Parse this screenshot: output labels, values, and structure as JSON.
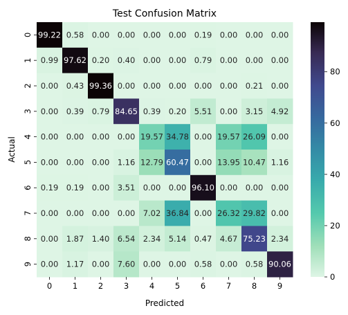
{
  "chart_data": {
    "type": "heatmap",
    "title": "Test Confusion Matrix",
    "xlabel": "Predicted",
    "ylabel": "Actual",
    "x_categories": [
      "0",
      "1",
      "2",
      "3",
      "4",
      "5",
      "6",
      "7",
      "8",
      "9"
    ],
    "y_categories": [
      "0",
      "1",
      "2",
      "3",
      "4",
      "5",
      "6",
      "7",
      "8",
      "9"
    ],
    "values": [
      [
        99.22,
        0.58,
        0.0,
        0.0,
        0.0,
        0.0,
        0.19,
        0.0,
        0.0,
        0.0
      ],
      [
        0.99,
        97.62,
        0.2,
        0.4,
        0.0,
        0.0,
        0.79,
        0.0,
        0.0,
        0.0
      ],
      [
        0.0,
        0.43,
        99.36,
        0.0,
        0.0,
        0.0,
        0.0,
        0.0,
        0.21,
        0.0
      ],
      [
        0.0,
        0.39,
        0.79,
        84.65,
        0.39,
        0.2,
        5.51,
        0.0,
        3.15,
        4.92
      ],
      [
        0.0,
        0.0,
        0.0,
        0.0,
        19.57,
        34.78,
        0.0,
        19.57,
        26.09,
        0.0
      ],
      [
        0.0,
        0.0,
        0.0,
        1.16,
        12.79,
        60.47,
        0.0,
        13.95,
        10.47,
        1.16
      ],
      [
        0.19,
        0.19,
        0.0,
        3.51,
        0.0,
        0.0,
        96.1,
        0.0,
        0.0,
        0.0
      ],
      [
        0.0,
        0.0,
        0.0,
        0.0,
        7.02,
        36.84,
        0.0,
        26.32,
        29.82,
        0.0
      ],
      [
        0.0,
        1.87,
        1.4,
        6.54,
        2.34,
        5.14,
        0.47,
        4.67,
        75.23,
        2.34
      ],
      [
        0.0,
        1.17,
        0.0,
        7.6,
        0.0,
        0.0,
        0.58,
        0.0,
        0.58,
        90.06
      ]
    ],
    "colormap": "mako_r",
    "color_range": [
      0,
      99.36
    ],
    "colorbar_ticks": [
      0,
      20,
      40,
      60,
      80
    ],
    "annotation_format": "0.00",
    "colors": {
      "low": "#def5e5",
      "high": "#0b0405",
      "text_dark": "#262626",
      "text_light": "#ffffff"
    }
  }
}
